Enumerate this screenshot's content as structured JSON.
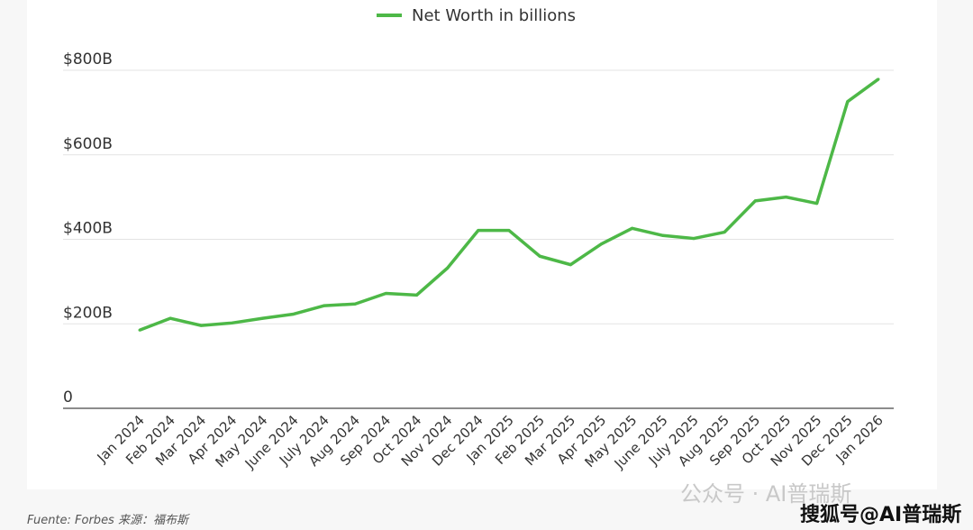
{
  "chart_data": {
    "type": "line",
    "title": "",
    "xlabel": "",
    "ylabel": "",
    "legend": {
      "label": "Net Worth in billions",
      "placement": "top-center"
    },
    "color": "#4db847",
    "ylim": [
      0,
      800
    ],
    "yticks": [
      0,
      200,
      400,
      600,
      800
    ],
    "ytick_labels": [
      "0",
      "$200B",
      "$400B",
      "$600B",
      "$800B"
    ],
    "grid": true,
    "categories": [
      "Jan 2024",
      "Feb 2024",
      "Mar 2024",
      "Apr 2024",
      "May 2024",
      "June 2024",
      "July 2024",
      "Aug 2024",
      "Sep 2024",
      "Oct 2024",
      "Nov 2024",
      "Dec 2024",
      "Jan 2025",
      "Feb 2025",
      "Mar 2025",
      "Apr 2025",
      "May 2025",
      "June 2025",
      "July 2025",
      "Aug 2025",
      "Sep 2025",
      "Oct 2025",
      "Nov 2025",
      "Dec 2025",
      "Jan 2026"
    ],
    "series": [
      {
        "name": "Net Worth in billions",
        "values": [
          185,
          213,
          196,
          202,
          213,
          223,
          243,
          247,
          272,
          268,
          332,
          421,
          421,
          360,
          340,
          389,
          426,
          409,
          402,
          417,
          491,
          500,
          485,
          726,
          779
        ]
      }
    ]
  },
  "footer": {
    "source": "Fuente: Forbes  来源：福布斯"
  },
  "watermark": {
    "line1": "公众号 · AI普瑞斯",
    "line2": "搜狐号@AI普瑞斯"
  }
}
